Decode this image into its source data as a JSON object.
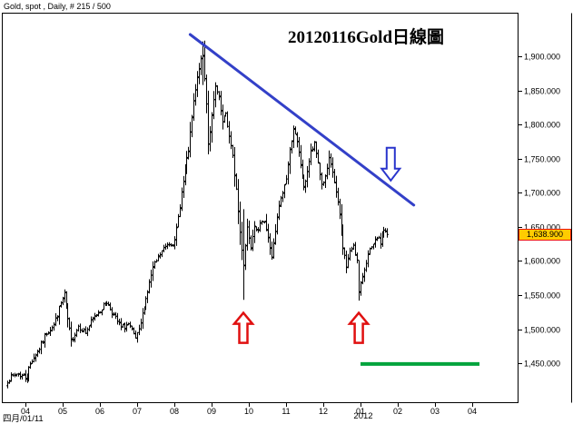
{
  "header": {
    "label": "Gold, spot , Daily, # 215 / 500"
  },
  "title": "20120116Gold日線圖",
  "axes": {
    "price_ticks": [
      {
        "value": 1900,
        "label": "1,900.000"
      },
      {
        "value": 1850,
        "label": "1,850.000"
      },
      {
        "value": 1800,
        "label": "1,800.000"
      },
      {
        "value": 1750,
        "label": "1,750.000"
      },
      {
        "value": 1700,
        "label": "1,700.000"
      },
      {
        "value": 1650,
        "label": "1,650.000"
      },
      {
        "value": 1600,
        "label": "1,600.000"
      },
      {
        "value": 1550,
        "label": "1,550.000"
      },
      {
        "value": 1500,
        "label": "1,500.000"
      },
      {
        "value": 1450,
        "label": "1,450.000"
      }
    ],
    "month_ticks": [
      "04",
      "05",
      "06",
      "07",
      "08",
      "09",
      "10",
      "11",
      "12",
      "01",
      "02",
      "03",
      "04"
    ],
    "year_label": "2012",
    "start_date_label": "四月/01/11"
  },
  "last_price": {
    "label": "1,638.900",
    "value": 1638.9
  },
  "colors": {
    "bars": "#000000",
    "trendline": "#3340c8",
    "down_arrow": "#2a35cc",
    "up_arrow": "#e01010",
    "support_line": "#00a33c",
    "last_price_bg": "#ffcc00",
    "last_price_border": "#ee1111",
    "plot_border": "#000000",
    "background": "#ffffff"
  },
  "chart_data": {
    "type": "ohlc-bar",
    "title": "20120116Gold日線圖",
    "instrument": "Gold, spot, Daily",
    "bars_shown": 215,
    "bars_total": 500,
    "x_months": [
      "2011-04",
      "2011-05",
      "2011-06",
      "2011-07",
      "2011-08",
      "2011-09",
      "2011-10",
      "2011-11",
      "2011-12",
      "2012-01",
      "2012-02",
      "2012-03",
      "2012-04"
    ],
    "ylim": [
      1393,
      1964
    ],
    "grid": false,
    "legend": false,
    "close_path": [
      [
        0,
        1425
      ],
      [
        5,
        1435
      ],
      [
        10,
        1430
      ],
      [
        14,
        1455
      ],
      [
        18,
        1472
      ],
      [
        22,
        1495
      ],
      [
        26,
        1507
      ],
      [
        30,
        1538
      ],
      [
        32,
        1552
      ],
      [
        34,
        1515
      ],
      [
        36,
        1482
      ],
      [
        40,
        1505
      ],
      [
        44,
        1495
      ],
      [
        48,
        1515
      ],
      [
        52,
        1528
      ],
      [
        56,
        1540
      ],
      [
        60,
        1520
      ],
      [
        64,
        1502
      ],
      [
        68,
        1507
      ],
      [
        72,
        1486
      ],
      [
        74,
        1497
      ],
      [
        78,
        1545
      ],
      [
        82,
        1590
      ],
      [
        86,
        1610
      ],
      [
        90,
        1625
      ],
      [
        94,
        1628
      ],
      [
        98,
        1700
      ],
      [
        102,
        1762
      ],
      [
        105,
        1832
      ],
      [
        108,
        1885
      ],
      [
        110,
        1900
      ],
      [
        112,
        1833
      ],
      [
        113,
        1772
      ],
      [
        115,
        1812
      ],
      [
        117,
        1855
      ],
      [
        119,
        1838
      ],
      [
        121,
        1802
      ],
      [
        123,
        1817
      ],
      [
        125,
        1782
      ],
      [
        127,
        1752
      ],
      [
        129,
        1705
      ],
      [
        131,
        1642
      ],
      [
        133,
        1595
      ],
      [
        135,
        1650
      ],
      [
        137,
        1622
      ],
      [
        139,
        1655
      ],
      [
        141,
        1642
      ],
      [
        143,
        1662
      ],
      [
        145,
        1658
      ],
      [
        147,
        1632
      ],
      [
        149,
        1607
      ],
      [
        151,
        1642
      ],
      [
        153,
        1680
      ],
      [
        155,
        1700
      ],
      [
        157,
        1722
      ],
      [
        159,
        1762
      ],
      [
        161,
        1795
      ],
      [
        163,
        1772
      ],
      [
        165,
        1742
      ],
      [
        167,
        1706
      ],
      [
        169,
        1732
      ],
      [
        171,
        1760
      ],
      [
        173,
        1770
      ],
      [
        175,
        1745
      ],
      [
        177,
        1712
      ],
      [
        179,
        1722
      ],
      [
        181,
        1748
      ],
      [
        183,
        1730
      ],
      [
        185,
        1700
      ],
      [
        187,
        1667
      ],
      [
        189,
        1622
      ],
      [
        191,
        1592
      ],
      [
        193,
        1612
      ],
      [
        195,
        1625
      ],
      [
        197,
        1600
      ],
      [
        198,
        1552
      ],
      [
        200,
        1578
      ],
      [
        202,
        1600
      ],
      [
        204,
        1615
      ],
      [
        206,
        1622
      ],
      [
        208,
        1635
      ],
      [
        210,
        1626
      ],
      [
        212,
        1646
      ],
      [
        214,
        1638.9
      ]
    ],
    "forced_bars": {
      "110": {
        "high": 1922,
        "low": 1858
      },
      "133": {
        "high": 1676,
        "low": 1543
      },
      "198": {
        "high": 1585,
        "low": 1542
      }
    },
    "annotations": {
      "trendline": {
        "from": {
          "bar": 103,
          "price": 1932
        },
        "to": {
          "bar": 229,
          "price": 1682
        }
      },
      "down_arrow": {
        "bar": 216,
        "tip_price": 1718,
        "top_price": 1766
      },
      "up_arrows": [
        {
          "bar": 133,
          "tip_price": 1524,
          "base_price": 1480
        },
        {
          "bar": 198,
          "tip_price": 1524,
          "base_price": 1480
        }
      ],
      "support_line": {
        "from_bar": 199,
        "to_bar": 266,
        "price": 1449
      }
    }
  }
}
